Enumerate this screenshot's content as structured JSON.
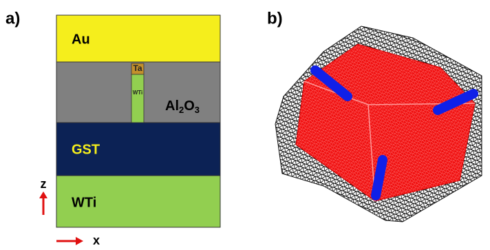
{
  "panel_a": {
    "label": "a)",
    "layers": {
      "au": "Au",
      "al2o3": [
        "Al",
        "2",
        "O",
        "3"
      ],
      "gst": "GST",
      "wti": "WTi"
    },
    "pillar": {
      "cap": "Ta",
      "body": "WTi"
    },
    "axes": {
      "z": "z",
      "x": "x"
    }
  },
  "panel_b": {
    "label": "b)"
  }
}
